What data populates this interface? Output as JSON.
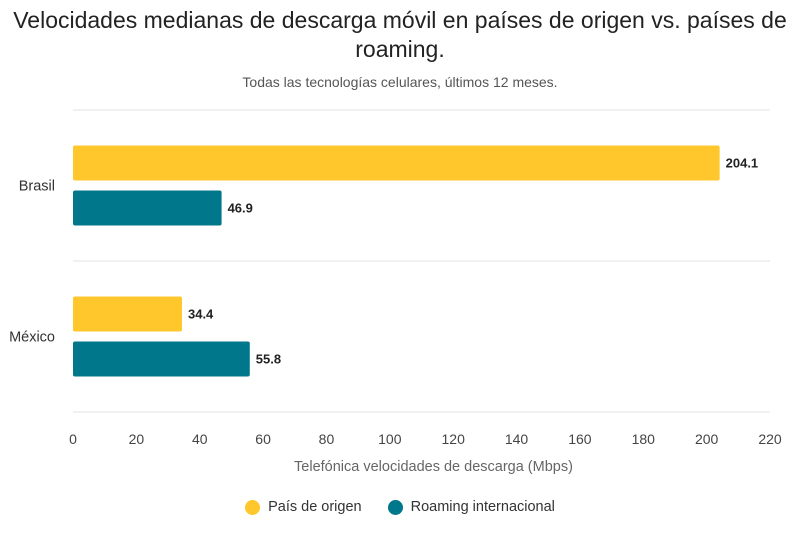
{
  "chart_data": {
    "type": "bar",
    "orientation": "horizontal",
    "title": "Velocidades medianas de descarga móvil en países de origen vs. países de roaming.",
    "subtitle": "Todas las tecnologías celulares, últimos 12 meses.",
    "xlabel": "Telefónica velocidades de descarga (Mbps)",
    "ylabel": "",
    "xlim": [
      0,
      220
    ],
    "xticks": [
      0,
      20,
      40,
      60,
      80,
      100,
      120,
      140,
      160,
      180,
      200,
      220
    ],
    "categories": [
      "Brasil",
      "México"
    ],
    "series": [
      {
        "name": "País de origen",
        "color": "#FFC72C",
        "values": [
          204.1,
          34.4
        ]
      },
      {
        "name": "Roaming internacional",
        "color": "#00778B",
        "values": [
          46.9,
          55.8
        ]
      }
    ],
    "legend_position": "bottom",
    "grid": true
  }
}
